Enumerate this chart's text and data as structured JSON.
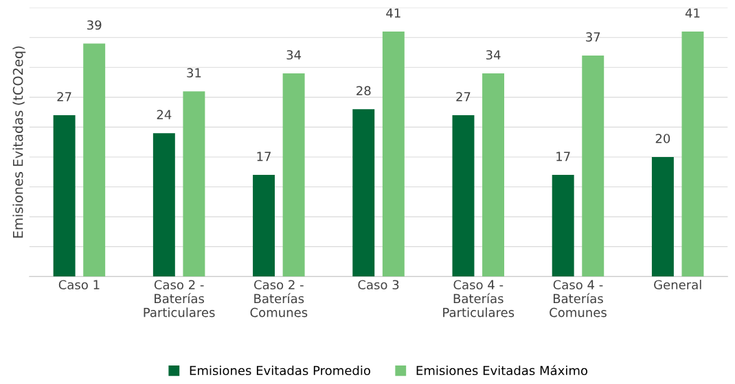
{
  "chart_data": {
    "type": "bar",
    "ylabel": "Emisiones Evitadas (tCO2eq)",
    "categories": [
      "Caso 1",
      "Caso 2 -\nBaterías\nParticulares",
      "Caso 2 -\nBaterías\nComunes",
      "Caso 3",
      "Caso 4 -\nBaterías\nParticulares",
      "Caso 4 -\nBaterías\nComunes",
      "General"
    ],
    "series": [
      {
        "name": "Emisiones Evitadas Promedio",
        "color": "#006837",
        "values": [
          27,
          24,
          17,
          28,
          27,
          17,
          20
        ]
      },
      {
        "name": "Emisiones Evitadas Máximo",
        "color": "#78c679",
        "values": [
          39,
          31,
          34,
          41,
          34,
          37,
          41
        ]
      }
    ],
    "ylim": [
      0,
      45
    ],
    "yticks": [
      {
        "value": 0,
        "label": null
      },
      {
        "value": 5,
        "label": null
      },
      {
        "value": 10,
        "label": null
      },
      {
        "value": 15,
        "label": null
      },
      {
        "value": 20,
        "label": null
      },
      {
        "value": 25,
        "label": null
      },
      {
        "value": 30,
        "label": null
      },
      {
        "value": 35,
        "label": null
      },
      {
        "value": 40,
        "label": null
      },
      {
        "value": 45,
        "label": null
      }
    ],
    "tick_labels": "x",
    "grid": "y",
    "legend": "bottom",
    "data_labels": true
  }
}
